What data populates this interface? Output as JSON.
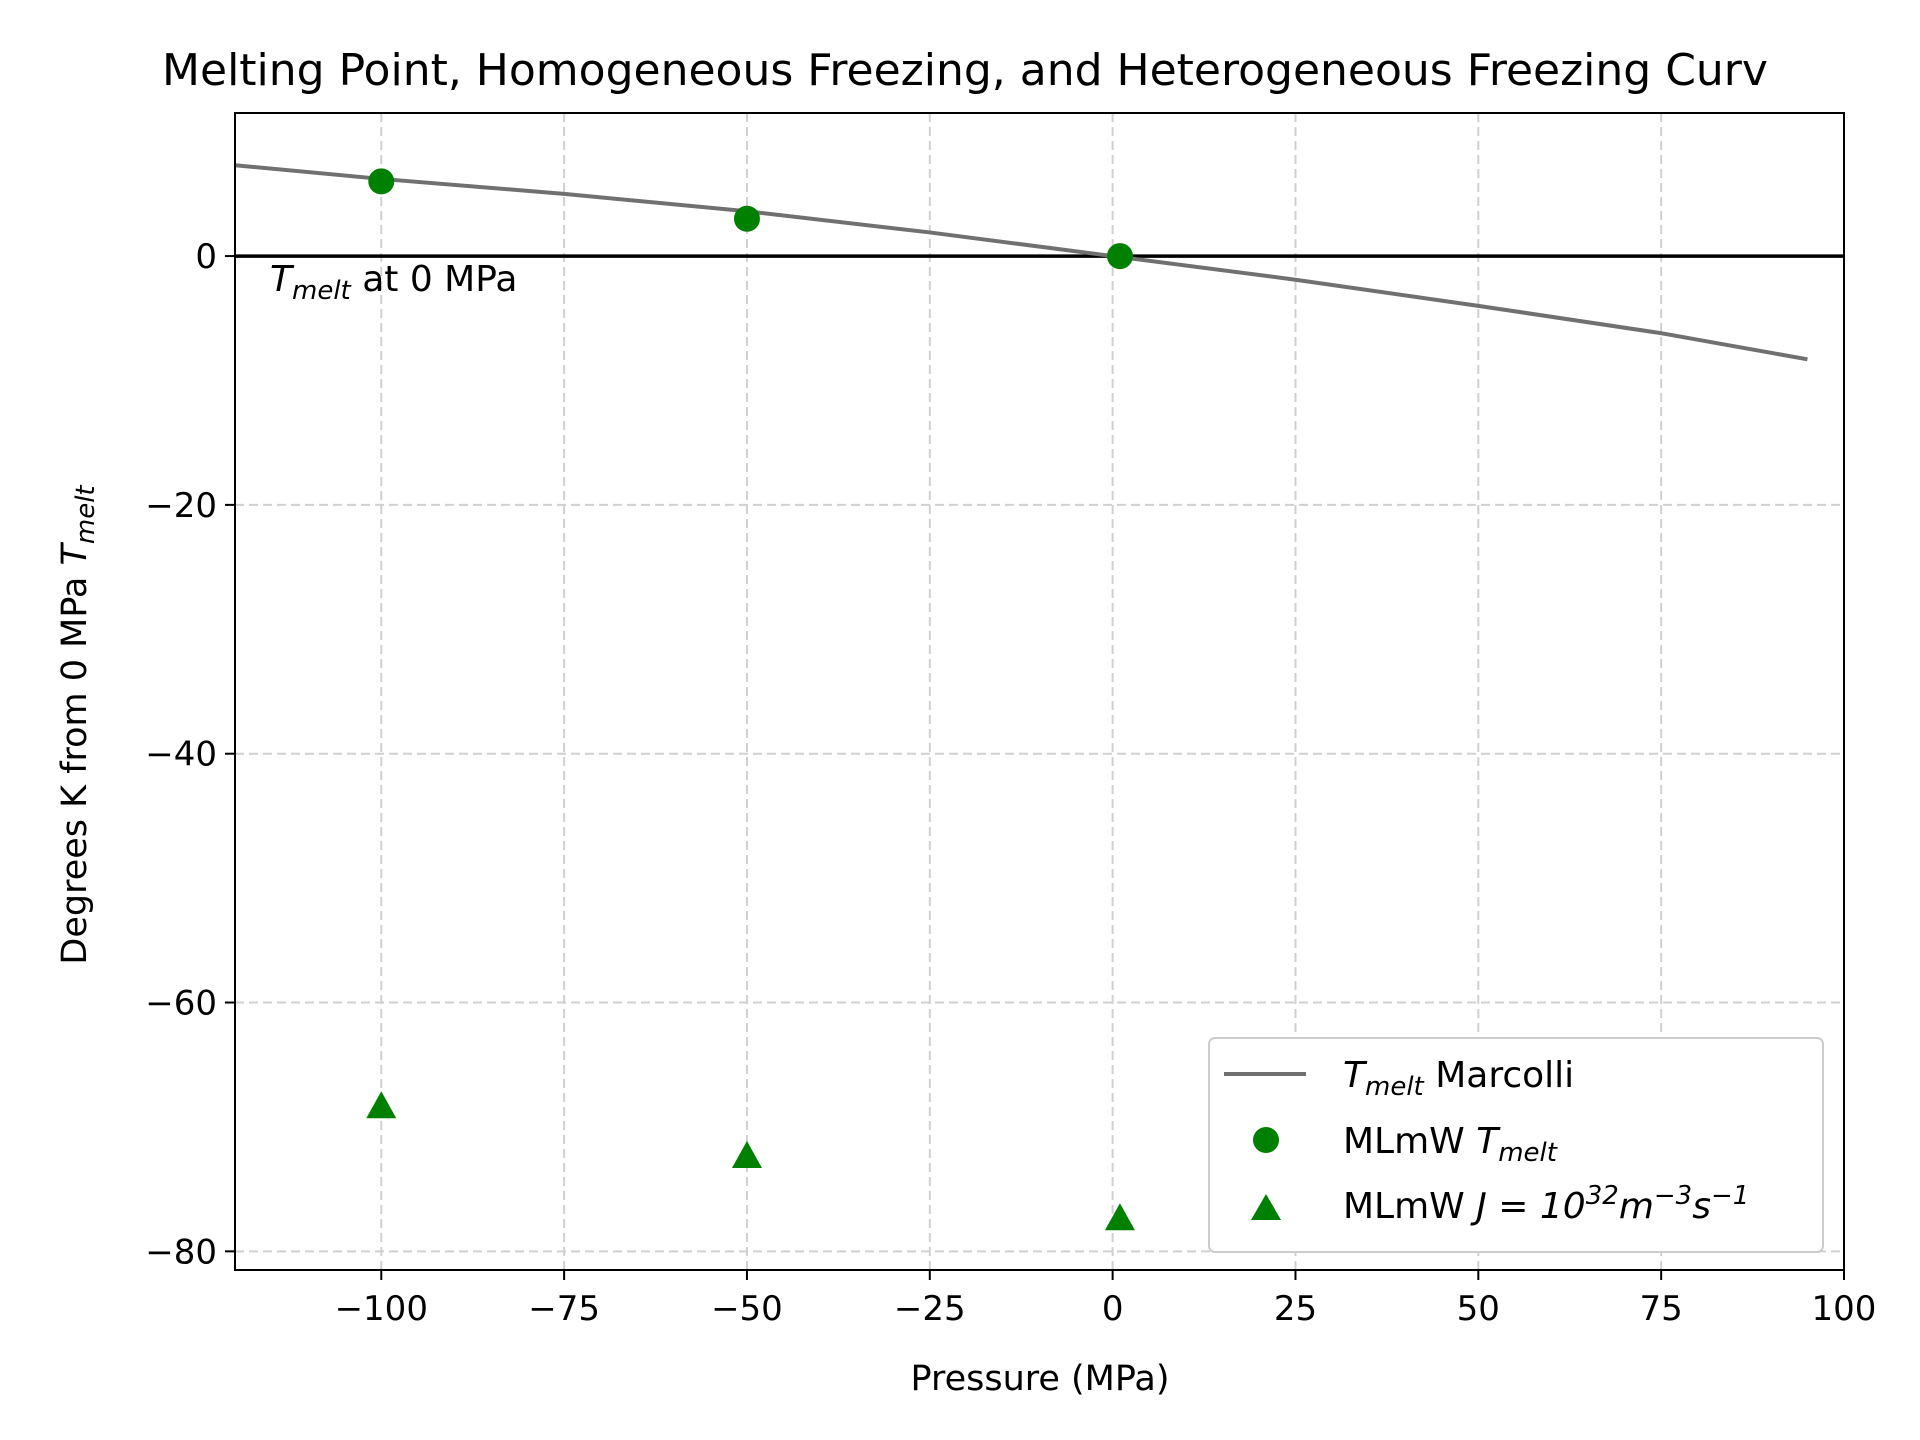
{
  "chart_data": {
    "type": "scatter",
    "title": "Melting Point, Homogeneous Freezing, and Heterogeneous Freezing Curv",
    "xlabel": "Pressure (MPa)",
    "ylabel_main": "Degrees K from 0 MPa ",
    "ylabel_var": "T",
    "ylabel_sub": "melt",
    "xlim": [
      -120,
      100
    ],
    "ylim": [
      -81.5,
      11.5
    ],
    "x_ticks": [
      -100,
      -75,
      -50,
      -25,
      0,
      25,
      50,
      75,
      100
    ],
    "x_tick_labels": [
      "−100",
      "−75",
      "−50",
      "−25",
      "0",
      "25",
      "50",
      "75",
      "100"
    ],
    "y_ticks": [
      0,
      -20,
      -40,
      -60,
      -80
    ],
    "y_tick_labels": [
      "0",
      "−20",
      "−40",
      "−60",
      "−80"
    ],
    "grid": true,
    "legend_position": "lower-right",
    "reference_line": {
      "y": 0,
      "color": "#000000",
      "label_var": "T",
      "label_sub": "melt",
      "label_rest": " at 0 MPa"
    },
    "series": [
      {
        "name_var": "T",
        "name_sub": "melt",
        "name_rest": " Marcolli",
        "kind": "line",
        "color": "#707070",
        "x": [
          -120,
          -100,
          -75,
          -50,
          -25,
          0,
          25,
          50,
          75,
          95
        ],
        "y": [
          7.3,
          6.2,
          5.0,
          3.6,
          1.9,
          0.0,
          -1.9,
          -4.0,
          -6.2,
          -8.3
        ]
      },
      {
        "name_main": "MLmW ",
        "name_var": "T",
        "name_sub": "melt",
        "kind": "circle",
        "color": "#008000",
        "x": [
          -100,
          -50,
          1
        ],
        "y": [
          6.0,
          3.0,
          0.0
        ]
      },
      {
        "name_main": "MLmW ",
        "name_math": "J = 10",
        "name_sup1": "32",
        "name_m": "m",
        "name_sup2": "−3",
        "name_s": "s",
        "name_sup3": "−1",
        "kind": "triangle",
        "color": "#008000",
        "x": [
          -100,
          -50,
          1
        ],
        "y": [
          -68.5,
          -72.5,
          -77.5
        ]
      }
    ]
  }
}
